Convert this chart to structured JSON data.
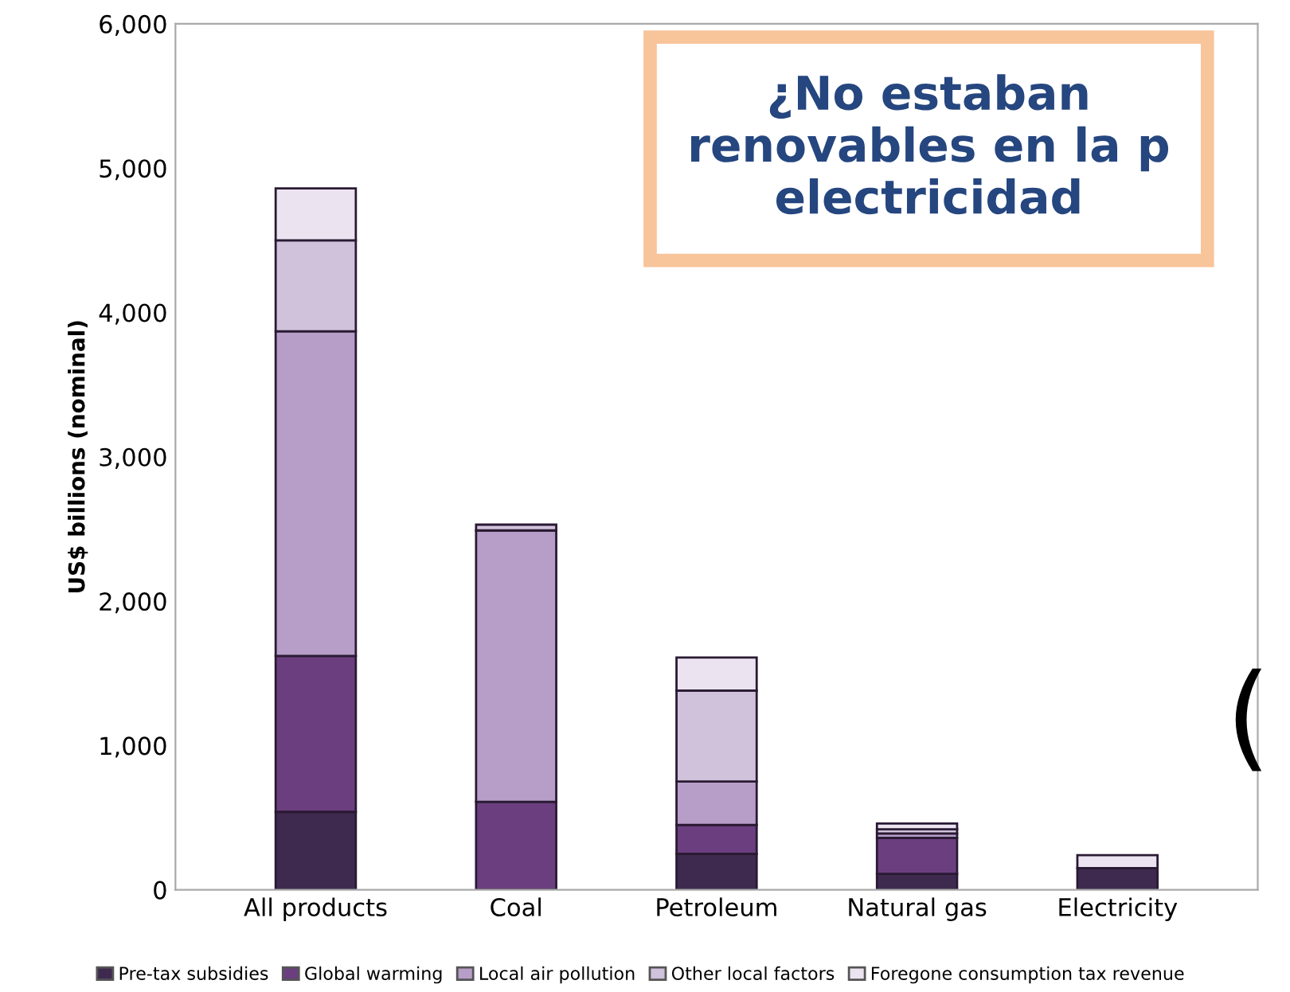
{
  "chart_data": {
    "type": "bar",
    "stacked": true,
    "ylabel": "US$ billions (nominal)",
    "categories": [
      "All products",
      "Coal",
      "Petroleum",
      "Natural gas",
      "Electricity"
    ],
    "series": [
      {
        "name": "Pre-tax subsidies",
        "color": "#3f2a4f",
        "values": [
          540,
          null,
          250,
          110,
          150
        ]
      },
      {
        "name": "Global warming",
        "color": "#6b3f7f",
        "values": [
          1080,
          610,
          200,
          250,
          null
        ]
      },
      {
        "name": "Local air pollution",
        "color": "#b79ec8",
        "values": [
          2250,
          1880,
          300,
          30,
          null
        ]
      },
      {
        "name": "Other local factors",
        "color": "#d0c2da",
        "values": [
          630,
          40,
          630,
          30,
          null
        ]
      },
      {
        "name": "Foregone consumption tax revenue",
        "color": "#ebe4f0",
        "values": [
          360,
          null,
          230,
          40,
          90
        ]
      }
    ],
    "ylim": [
      0,
      6000
    ],
    "yticks": [
      {
        "value": 0,
        "label": "0"
      },
      {
        "value": 1000,
        "label": "1,000"
      },
      {
        "value": 2000,
        "label": "2,000"
      },
      {
        "value": 3000,
        "label": "3,000"
      },
      {
        "value": 4000,
        "label": "4,000"
      },
      {
        "value": 5000,
        "label": "5,000"
      },
      {
        "value": 6000,
        "label": "6,000"
      }
    ],
    "grid": false,
    "legend": "bottom",
    "annotations": [
      "¿No estaban\nrenovables en la p\nelectricidad",
      "("
    ]
  }
}
